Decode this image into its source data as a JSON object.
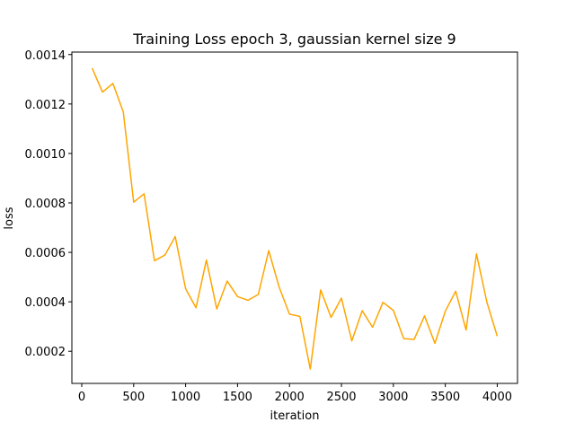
{
  "chart_data": {
    "type": "line",
    "title": "Training Loss epoch 3, gaussian kernel size 9",
    "xlabel": "iteration",
    "ylabel": "loss",
    "xlim": [
      -95,
      4195
    ],
    "ylim": [
      7e-05,
      0.00141
    ],
    "xticks": [
      0,
      500,
      1000,
      1500,
      2000,
      2500,
      3000,
      3500,
      4000
    ],
    "xtick_labels": [
      "0",
      "500",
      "1000",
      "1500",
      "2000",
      "2500",
      "3000",
      "3500",
      "4000"
    ],
    "yticks": [
      0.0002,
      0.0004,
      0.0006,
      0.0008,
      0.001,
      0.0012,
      0.0014
    ],
    "ytick_labels": [
      "0.0002",
      "0.0004",
      "0.0006",
      "0.0008",
      "0.0010",
      "0.0012",
      "0.0014"
    ],
    "grid": false,
    "series": [
      {
        "color": "#FFA500",
        "x": [
          100,
          200,
          300,
          400,
          500,
          600,
          700,
          800,
          900,
          1000,
          1100,
          1200,
          1300,
          1400,
          1500,
          1600,
          1700,
          1800,
          1900,
          2000,
          2100,
          2200,
          2300,
          2400,
          2500,
          2600,
          2700,
          2800,
          2900,
          3000,
          3100,
          3200,
          3300,
          3400,
          3500,
          3600,
          3700,
          3800,
          3900,
          4000
        ],
        "y": [
          0.001345,
          0.001248,
          0.001283,
          0.001168,
          0.000803,
          0.000837,
          0.000566,
          0.000589,
          0.000664,
          0.000453,
          0.000376,
          0.000569,
          0.000371,
          0.000484,
          0.000421,
          0.000406,
          0.00043,
          0.000607,
          0.00046,
          0.00035,
          0.000341,
          0.000128,
          0.000448,
          0.000337,
          0.000415,
          0.000242,
          0.000364,
          0.000297,
          0.000398,
          0.000365,
          0.000251,
          0.000248,
          0.000343,
          0.000232,
          0.000362,
          0.000443,
          0.000286,
          0.000594,
          0.000399,
          0.000261
        ]
      }
    ]
  }
}
